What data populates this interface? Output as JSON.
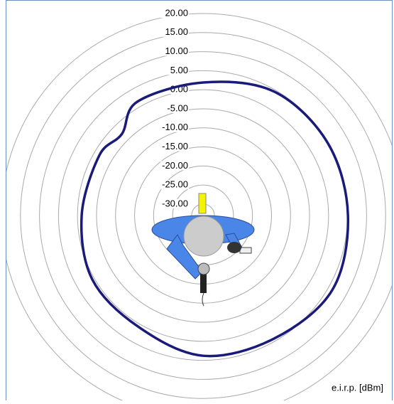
{
  "chart_data": {
    "type": "polar",
    "caption": "e.i.r.p. [dBm]",
    "theta": [
      0,
      30,
      60,
      90,
      120,
      150,
      180,
      210,
      240,
      270,
      300,
      315,
      330
    ],
    "series": [
      {
        "color": "#1a1a7a",
        "values": [
          1.9,
          4.5,
          4.9,
          5.1,
          6.2,
          4.3,
          3.8,
          0.8,
          0.6,
          -1.1,
          -1.5,
          -2.8,
          1.5
        ]
      }
    ],
    "rlim": [
      -33,
      20
    ],
    "rticks": [
      {
        "value": 20,
        "label": "20.00"
      },
      {
        "value": 15,
        "label": "15.00"
      },
      {
        "value": 10,
        "label": "10.00"
      },
      {
        "value": 5,
        "label": "5.00"
      },
      {
        "value": 0,
        "label": "0.00"
      },
      {
        "value": -5,
        "label": "-5.00"
      },
      {
        "value": -10,
        "label": "-10.00"
      },
      {
        "value": -15,
        "label": "-15.00"
      },
      {
        "value": -20,
        "label": "-20.00"
      },
      {
        "value": -25,
        "label": "-25.00"
      },
      {
        "value": -30,
        "label": "-30.00"
      }
    ],
    "grid": true
  }
}
